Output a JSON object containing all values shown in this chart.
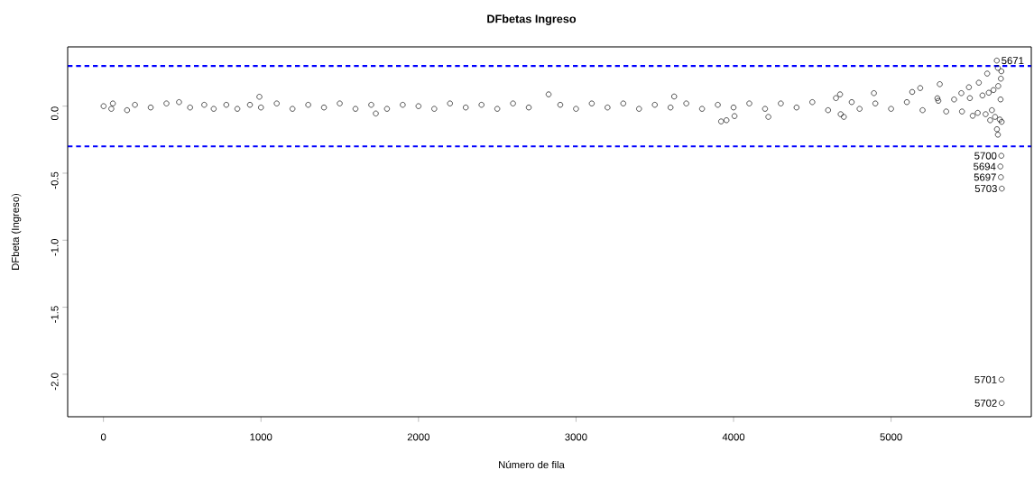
{
  "chart_data": {
    "type": "scatter",
    "title": "DFbetas Ingreso",
    "xlabel": "Número de fila",
    "ylabel": "DFbeta (Ingreso)",
    "xlim": [
      -227,
      5890
    ],
    "ylim": [
      -2.317,
      0.442
    ],
    "xticks": [
      0,
      1000,
      2000,
      3000,
      4000,
      5000
    ],
    "yticks": [
      {
        "value": -2,
        "label": "-2.0"
      },
      {
        "value": -1.5,
        "label": "-1.5"
      },
      {
        "value": -1,
        "label": "-1.0"
      },
      {
        "value": -0.5,
        "label": "-0.5"
      },
      {
        "value": 0,
        "label": "0.0"
      }
    ],
    "marker": "circle",
    "series": [
      {
        "color": "#000000",
        "x": [
          1,
          50,
          60,
          150,
          200,
          300,
          400,
          480,
          550,
          640,
          700,
          780,
          850,
          930,
          990,
          1000,
          1100,
          1200,
          1300,
          1400,
          1500,
          1600,
          1700,
          1729,
          1800,
          1900,
          2000,
          2100,
          2200,
          2300,
          2400,
          2500,
          2600,
          2700,
          2826,
          2900,
          3000,
          3100,
          3200,
          3300,
          3400,
          3500,
          3600,
          3623,
          3700,
          3800,
          3900,
          3921,
          3955,
          4000,
          4006,
          4100,
          4200,
          4221,
          4300,
          4400,
          4500,
          4600,
          4650,
          4676,
          4680,
          4700,
          4750,
          4800,
          4891,
          4900,
          5000,
          5100,
          5134,
          5185,
          5200,
          5294,
          5300,
          5309,
          5350,
          5400,
          5446,
          5450,
          5494,
          5500,
          5518,
          5550,
          5557,
          5580,
          5600,
          5610,
          5620,
          5629,
          5640,
          5650,
          5660,
          5671,
          5672,
          5678,
          5678,
          5680,
          5690,
          5694,
          5695,
          5697,
          5697,
          5700,
          5700,
          5701,
          5702,
          5702,
          5703
        ],
        "values": [
          0,
          -0.02,
          0.02,
          -0.03,
          0.01,
          -0.01,
          0.02,
          0.03,
          -0.01,
          0.01,
          -0.02,
          0.01,
          -0.02,
          0.01,
          0.07,
          -0.01,
          0.02,
          -0.02,
          0.01,
          -0.01,
          0.02,
          -0.02,
          0.01,
          -0.055,
          -0.02,
          0.01,
          0,
          -0.02,
          0.02,
          -0.01,
          0.01,
          -0.02,
          0.02,
          -0.01,
          0.088,
          0.01,
          -0.02,
          0.02,
          -0.01,
          0.02,
          -0.02,
          0.01,
          -0.01,
          0.072,
          0.02,
          -0.02,
          0.01,
          -0.114,
          -0.105,
          -0.01,
          -0.074,
          0.02,
          -0.02,
          -0.08,
          0.02,
          -0.01,
          0.03,
          -0.03,
          0.06,
          0.088,
          -0.06,
          -0.08,
          0.03,
          -0.02,
          0.097,
          0.02,
          -0.02,
          0.03,
          0.106,
          0.135,
          -0.03,
          0.059,
          0.04,
          0.164,
          -0.04,
          0.05,
          0.097,
          -0.04,
          0.141,
          0.06,
          -0.072,
          -0.05,
          0.175,
          0.08,
          -0.06,
          0.243,
          0.1,
          -0.105,
          -0.03,
          0.12,
          -0.08,
          0.34,
          -0.172,
          0.285,
          -0.213,
          0.15,
          -0.1,
          -0.45,
          0.05,
          0.205,
          -0.53,
          0.26,
          -0.37,
          -2.04,
          -0.117,
          -2.215,
          -0.615
        ]
      }
    ],
    "ref_lines": [
      {
        "axis": "y",
        "value": 0.3,
        "color": "#0000ff",
        "line_style": "dashed"
      },
      {
        "axis": "y",
        "value": -0.3,
        "color": "#0000ff",
        "line_style": "dashed"
      }
    ],
    "annotations": [
      {
        "text": "5671",
        "x": 5671,
        "y": 0.34
      },
      {
        "text": "5700",
        "x": 5700,
        "y": -0.37
      },
      {
        "text": "5694",
        "x": 5694,
        "y": -0.45
      },
      {
        "text": "5697",
        "x": 5697,
        "y": -0.53
      },
      {
        "text": "5703",
        "x": 5703,
        "y": -0.615
      },
      {
        "text": "5701",
        "x": 5701,
        "y": -2.04
      },
      {
        "text": "5702",
        "x": 5702,
        "y": -2.215
      }
    ]
  }
}
